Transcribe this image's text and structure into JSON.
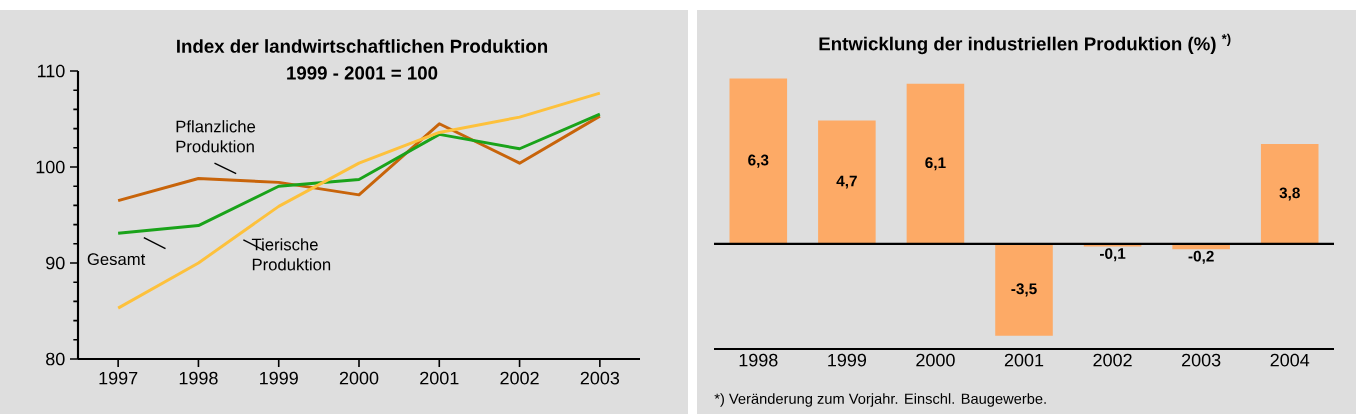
{
  "chart_data": [
    {
      "type": "line",
      "title": "Index der landwirtschaftlichen Produktion",
      "subtitle": "1999 - 2001 = 100",
      "x": [
        1997,
        1998,
        1999,
        2000,
        2001,
        2002,
        2003
      ],
      "series": [
        {
          "name": "Pflanzliche Produktion",
          "color": "#c8640a",
          "values": [
            96.5,
            98.8,
            98.4,
            97.1,
            104.5,
            100.4,
            105.3
          ]
        },
        {
          "name": "Gesamt",
          "color": "#1aa31a",
          "values": [
            93.1,
            93.9,
            98.0,
            98.7,
            103.4,
            101.9,
            105.5
          ]
        },
        {
          "name": "Tierische Produktion",
          "color": "#fdc13c",
          "values": [
            85.3,
            90.0,
            95.9,
            100.4,
            103.6,
            105.2,
            107.7
          ]
        }
      ],
      "xlim": [
        1996.5,
        2003.5
      ],
      "ylim": [
        80,
        110
      ],
      "xticks": [
        1997,
        1998,
        1999,
        2000,
        2001,
        2002,
        2003
      ],
      "yticks": [
        80,
        90,
        100,
        110
      ]
    },
    {
      "type": "bar",
      "title": "Entwicklung der industriellen Produktion (%) $^{*)}$",
      "categories": [
        "1998",
        "1999",
        "2000",
        "2001",
        "2002",
        "2003",
        "2004"
      ],
      "values": [
        6.3,
        4.7,
        6.1,
        -3.5,
        -0.1,
        -0.2,
        3.8
      ],
      "value_labels": [
        "6,3",
        "4,7",
        "6,1",
        "-3,5",
        "-0,1",
        "-0,2",
        "3,8"
      ],
      "color": "#fdaa66",
      "annotations": [
        "*) Veränderung zum Vorjahr. Einschl. Baugewerbe."
      ]
    }
  ]
}
